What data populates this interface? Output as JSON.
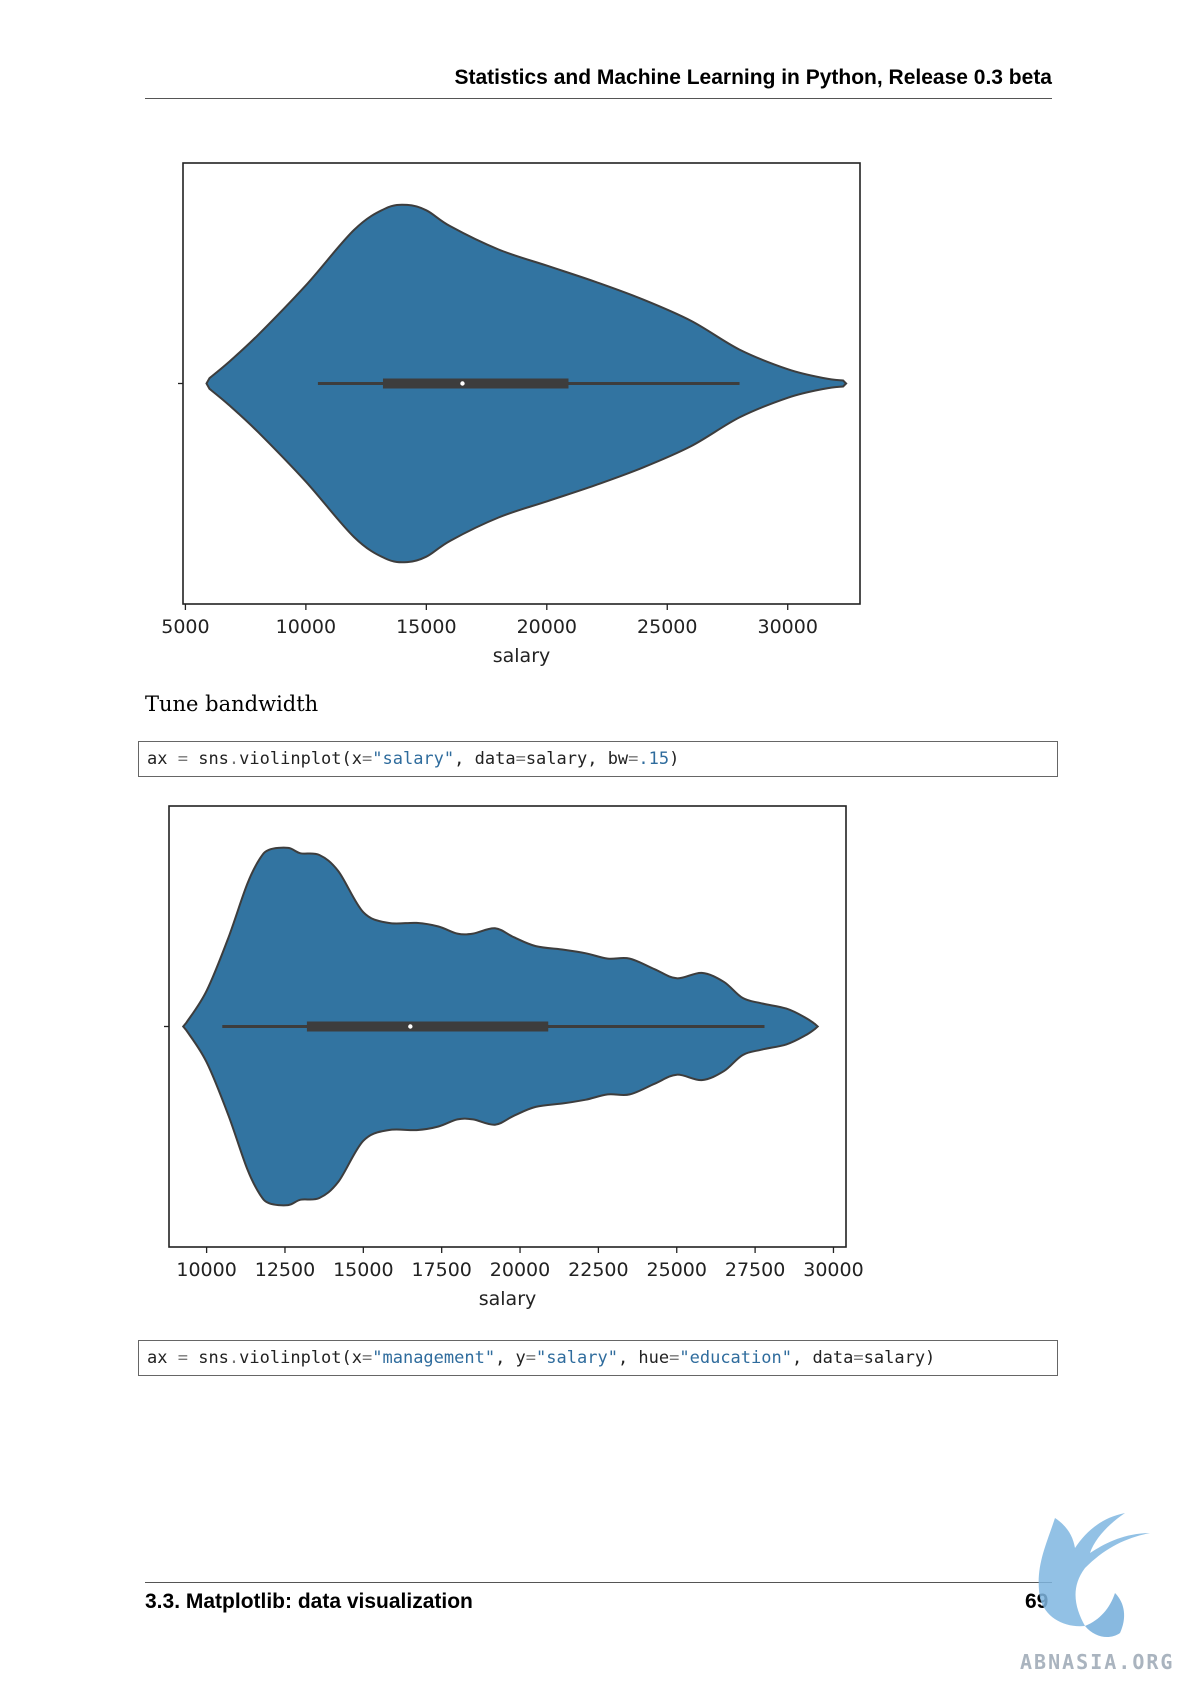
{
  "header": {
    "running_title": "Statistics and Machine Learning in Python, Release 0.3 beta"
  },
  "body": {
    "section_text": "Tune bandwidth",
    "code_1": {
      "prefix": "ax ",
      "eq": "=",
      "call": " sns",
      "dot": ".",
      "fn": "violinplot(x",
      "eq2": "=",
      "str1": "\"salary\"",
      "mid": ", data",
      "eq3": "=",
      "mid2": "salary, bw",
      "eq4": "=",
      "num": ".15",
      "end": ")"
    },
    "code_2": {
      "prefix": "ax ",
      "eq": "=",
      "call": " sns",
      "dot": ".",
      "fn": "violinplot(x",
      "eq2": "=",
      "str1": "\"management\"",
      "mid": ", y",
      "eq3": "=",
      "str2": "\"salary\"",
      "mid2": ", hue",
      "eq4": "=",
      "str3": "\"education\"",
      "mid3": ", data",
      "eq5": "=",
      "end": "salary)"
    }
  },
  "footer": {
    "section": "3.3.  Matplotlib: data visualization",
    "page_number": "69"
  },
  "watermark": {
    "text": "ABNASIA.ORG"
  },
  "colors": {
    "violin_fill": "#3274a1",
    "violin_edge": "#3d3d3d",
    "box": "#3d3d3d"
  },
  "chart_data": [
    {
      "type": "violin",
      "xlabel": "salary",
      "xlim": [
        4900,
        33000
      ],
      "xticks": [
        5000,
        10000,
        15000,
        20000,
        25000,
        30000
      ],
      "tick_labels": [
        "5000",
        "10000",
        "15000",
        "20000",
        "25000",
        "30000"
      ],
      "density_profile": [
        [
          6000,
          0.03
        ],
        [
          6800,
          0.12
        ],
        [
          8000,
          0.27
        ],
        [
          10000,
          0.55
        ],
        [
          12000,
          0.86
        ],
        [
          13300,
          0.98
        ],
        [
          14200,
          1.0
        ],
        [
          15000,
          0.97
        ],
        [
          16000,
          0.88
        ],
        [
          18000,
          0.75
        ],
        [
          20000,
          0.66
        ],
        [
          22000,
          0.57
        ],
        [
          24000,
          0.47
        ],
        [
          26000,
          0.35
        ],
        [
          28000,
          0.19
        ],
        [
          30000,
          0.08
        ],
        [
          31500,
          0.03
        ],
        [
          32300,
          0.017
        ]
      ],
      "whisker_min": 10500,
      "q1": 13200,
      "median": 16500,
      "q3": 20900,
      "whisker_max": 28000
    },
    {
      "type": "violin",
      "xlabel": "salary",
      "xlim": [
        8800,
        30400
      ],
      "xticks": [
        10000,
        12500,
        15000,
        17500,
        20000,
        22500,
        25000,
        27500,
        30000
      ],
      "tick_labels": [
        "10000",
        "12500",
        "15000",
        "17500",
        "20000",
        "22500",
        "25000",
        "27500",
        "30000"
      ],
      "density_profile": [
        [
          9350,
          0.02
        ],
        [
          10000,
          0.2
        ],
        [
          10700,
          0.5
        ],
        [
          11300,
          0.8
        ],
        [
          11700,
          0.94
        ],
        [
          12000,
          0.99
        ],
        [
          12600,
          1.0
        ],
        [
          13000,
          0.97
        ],
        [
          13600,
          0.96
        ],
        [
          14200,
          0.87
        ],
        [
          15000,
          0.64
        ],
        [
          15800,
          0.58
        ],
        [
          16700,
          0.58
        ],
        [
          17400,
          0.56
        ],
        [
          18000,
          0.52
        ],
        [
          18500,
          0.52
        ],
        [
          19200,
          0.55
        ],
        [
          19800,
          0.5
        ],
        [
          20500,
          0.45
        ],
        [
          21400,
          0.43
        ],
        [
          22100,
          0.41
        ],
        [
          22800,
          0.38
        ],
        [
          23500,
          0.38
        ],
        [
          24300,
          0.32
        ],
        [
          25000,
          0.27
        ],
        [
          25800,
          0.3
        ],
        [
          26500,
          0.25
        ],
        [
          27100,
          0.16
        ],
        [
          27700,
          0.13
        ],
        [
          28500,
          0.1
        ],
        [
          29100,
          0.05
        ],
        [
          29400,
          0.015
        ]
      ],
      "whisker_min": 10500,
      "q1": 13200,
      "median": 16500,
      "q3": 20900,
      "whisker_max": 27800
    }
  ]
}
